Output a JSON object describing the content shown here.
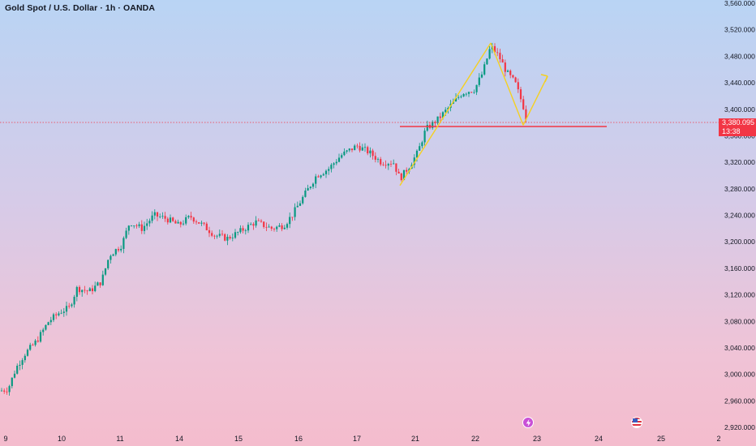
{
  "title": "Gold Spot / U.S. Dollar · 1h · OANDA",
  "colors": {
    "up": "#089981",
    "down": "#f23645",
    "support": "#f23645",
    "arrow": "#f5d020",
    "price_line": "#f23645"
  },
  "current_price": {
    "value": "3,380.095",
    "countdown": "13:38"
  },
  "event_icons": [
    "lightning-icon",
    "us-flag-icon"
  ],
  "chart_data": {
    "type": "candlestick",
    "title": "Gold Spot / U.S. Dollar · 1h · OANDA",
    "ylim": [
      2920,
      3560
    ],
    "y_ticks": [
      "3,560.000",
      "3,520.000",
      "3,480.000",
      "3,440.000",
      "3,400.000",
      "3,360.000",
      "3,320.000",
      "3,280.000",
      "3,240.000",
      "3,200.000",
      "3,160.000",
      "3,120.000",
      "3,080.000",
      "3,040.000",
      "3,000.000",
      "2,960.000",
      "2,920.000"
    ],
    "x_ticks": [
      "9",
      "10",
      "11",
      "14",
      "15",
      "16",
      "17",
      "21",
      "22",
      "23",
      "24",
      "25",
      "2"
    ],
    "support_level": 3374,
    "last_price": 3380.095,
    "price_path": [
      [
        0,
        2975
      ],
      [
        10,
        2978
      ],
      [
        20,
        3010
      ],
      [
        30,
        3030
      ],
      [
        45,
        3050
      ],
      [
        60,
        3080
      ],
      [
        75,
        3095
      ],
      [
        85,
        3100
      ],
      [
        95,
        3130
      ],
      [
        110,
        3125
      ],
      [
        125,
        3140
      ],
      [
        135,
        3180
      ],
      [
        150,
        3195
      ],
      [
        160,
        3230
      ],
      [
        175,
        3220
      ],
      [
        190,
        3240
      ],
      [
        205,
        3235
      ],
      [
        220,
        3225
      ],
      [
        235,
        3238
      ],
      [
        250,
        3225
      ],
      [
        265,
        3210
      ],
      [
        280,
        3205
      ],
      [
        295,
        3215
      ],
      [
        315,
        3230
      ],
      [
        335,
        3220
      ],
      [
        350,
        3225
      ],
      [
        360,
        3240
      ],
      [
        375,
        3270
      ],
      [
        390,
        3300
      ],
      [
        405,
        3310
      ],
      [
        420,
        3330
      ],
      [
        440,
        3345
      ],
      [
        455,
        3335
      ],
      [
        470,
        3320
      ],
      [
        485,
        3320
      ],
      [
        493,
        3295
      ],
      [
        505,
        3315
      ],
      [
        515,
        3335
      ],
      [
        525,
        3370
      ],
      [
        540,
        3385
      ],
      [
        555,
        3405
      ],
      [
        570,
        3425
      ],
      [
        585,
        3430
      ],
      [
        595,
        3455
      ],
      [
        605,
        3495
      ],
      [
        615,
        3480
      ],
      [
        625,
        3455
      ],
      [
        635,
        3440
      ],
      [
        645,
        3405
      ],
      [
        650,
        3380
      ]
    ],
    "annotations": {
      "up_leg": [
        [
          493,
          3285
        ],
        [
          605,
          3500
        ]
      ],
      "down_leg": [
        [
          605,
          3500
        ],
        [
          645,
          3376
        ]
      ],
      "projection": [
        [
          645,
          3376
        ],
        [
          675,
          3450
        ]
      ]
    }
  }
}
